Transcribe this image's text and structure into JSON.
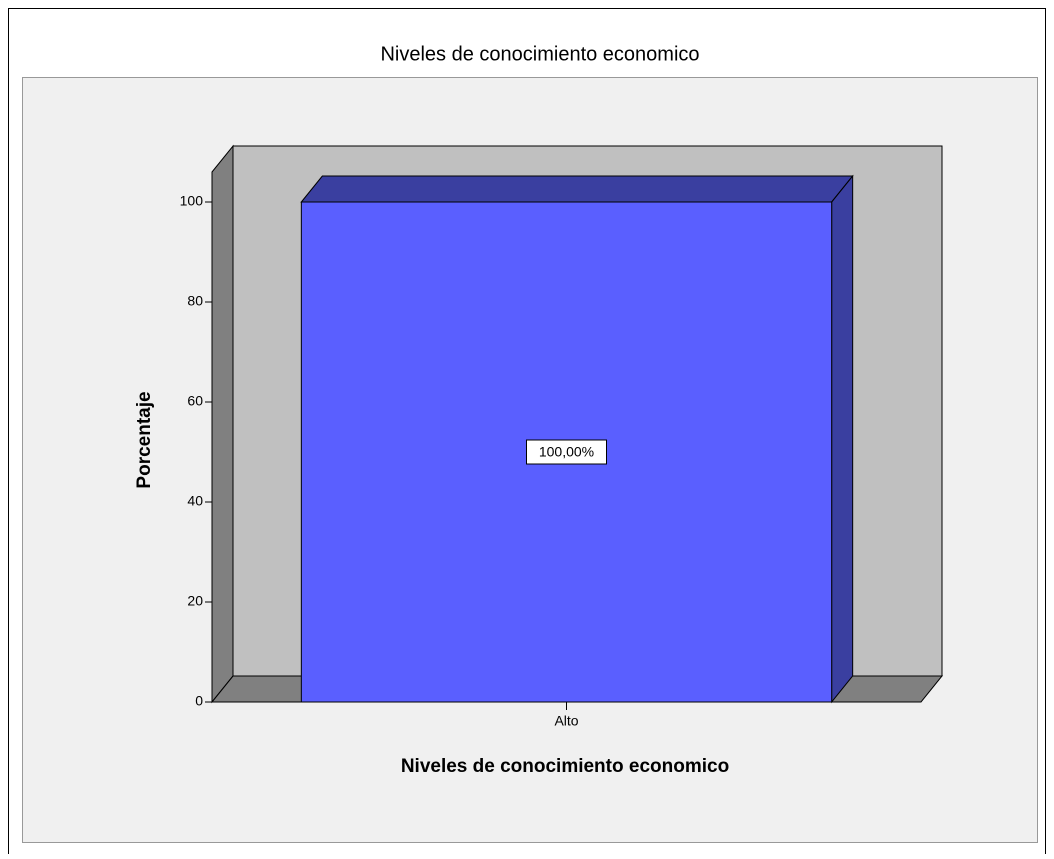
{
  "chart_data": {
    "type": "bar3d",
    "title": "Niveles de conocimiento economico",
    "x_label": "Niveles de conocimiento economico",
    "y_label": "Porcentaje",
    "categories": [
      "Alto"
    ],
    "values": [
      100
    ],
    "value_labels": [
      "100,00%"
    ],
    "color": "#5a5fff",
    "ylim": [
      0,
      106
    ],
    "yticks": [
      0,
      20,
      40,
      60,
      80,
      100
    ]
  }
}
